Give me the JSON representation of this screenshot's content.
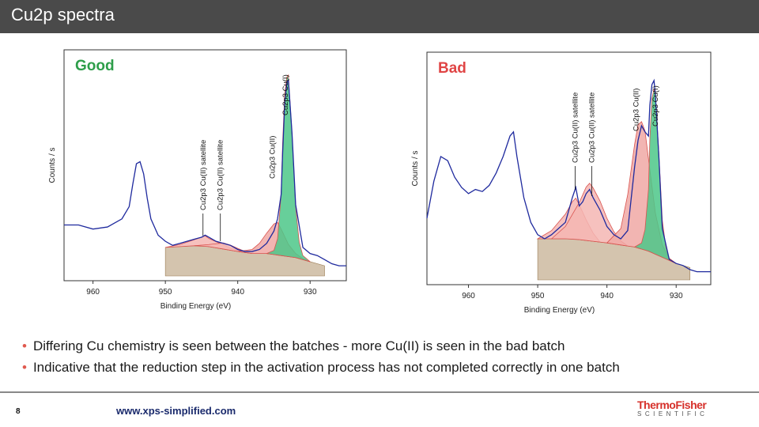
{
  "slide": {
    "title": "Cu2p spectra",
    "page_number": "8",
    "url": "www.xps-simplified.com",
    "logo_line1": "ThermoFisher",
    "logo_line2": "SCIENTIFIC",
    "bullets": [
      "Differing Cu chemistry is seen between the batches - more Cu(II) is seen in the bad batch",
      "Indicative that the reduction step in the activation process has not completed correctly in one batch"
    ],
    "bullet_color": "#e05a4f"
  },
  "chart_data": [
    {
      "type": "line",
      "title": "Good",
      "title_color": "#2e9e4a",
      "xlabel": "Binding Energy (eV)",
      "ylabel": "Counts / s",
      "x_reversed": true,
      "xlim": [
        964,
        925
      ],
      "ylim": [
        0,
        100
      ],
      "xticks": [
        960,
        950,
        940,
        930
      ],
      "grid": false,
      "series": [
        {
          "color": "#1f2a9e",
          "x": [
            964,
            962,
            960,
            958,
            957,
            956,
            955,
            954.5,
            954,
            953.5,
            953,
            952.5,
            952,
            951,
            950,
            949,
            948,
            947,
            946,
            945,
            944.5,
            944,
            943,
            942,
            941,
            940,
            939,
            938,
            937,
            936,
            935,
            934.5,
            934,
            933.8,
            933.5,
            933.2,
            933,
            932.5,
            932,
            931,
            930,
            929,
            928,
            927,
            926,
            925
          ],
          "y": [
            25,
            25,
            23,
            24,
            26,
            28,
            34,
            45,
            55,
            56,
            50,
            38,
            28,
            20,
            17,
            15,
            16,
            17,
            18,
            19,
            20,
            19,
            17,
            16,
            15,
            13,
            12,
            12,
            13,
            16,
            22,
            28,
            40,
            60,
            85,
            95,
            96,
            70,
            35,
            14,
            11,
            10,
            8,
            6,
            5,
            5
          ]
        }
      ],
      "components": [
        {
          "name": "Cu2p3 Cu(II) satellite",
          "color": "#f4b6b3",
          "x": [
            950,
            948,
            946,
            945,
            944.5,
            944,
            943,
            942,
            941,
            940,
            939
          ],
          "y": [
            0,
            1,
            3,
            4,
            5,
            4,
            3,
            2,
            1,
            0.5,
            0
          ]
        },
        {
          "name": "Cu2p3 Cu(II) satellite",
          "color": "#f4b6b3",
          "x": [
            946,
            944,
            943,
            942,
            941,
            940,
            939,
            938
          ],
          "y": [
            0,
            1,
            2,
            3,
            2.5,
            1.5,
            0.5,
            0
          ]
        },
        {
          "name": "Cu2p3 Cu(II)",
          "color": "#f0a8a4",
          "x": [
            940,
            938,
            937,
            936,
            935,
            934.5,
            934,
            933,
            932,
            931,
            930
          ],
          "y": [
            0,
            2,
            5,
            10,
            15,
            16,
            13,
            6,
            2,
            0.5,
            0
          ]
        },
        {
          "name": "Cu2p3 Cu(I)",
          "color": "#4cc788",
          "x": [
            936,
            935,
            934.5,
            934,
            933.8,
            933.5,
            933.2,
            933,
            932.5,
            932,
            931.5,
            931,
            930
          ],
          "y": [
            0,
            2,
            8,
            30,
            55,
            80,
            88,
            89,
            60,
            25,
            8,
            2,
            0
          ]
        }
      ],
      "background": {
        "color": "#c9b59a",
        "x": [
          950,
          945,
          940,
          938,
          936,
          934,
          932,
          930,
          928
        ],
        "y": [
          14,
          15,
          12,
          11,
          11,
          10,
          9,
          7,
          5
        ]
      },
      "annotations": [
        {
          "label": "Cu2p3 Cu(II) satellite",
          "x": 944.8
        },
        {
          "label": "Cu2p3 Cu(II) satellite",
          "x": 942.4
        },
        {
          "label": "Cu2p3 Cu(II)",
          "x": 935.2
        },
        {
          "label": "Cu2p3 Cu(I)",
          "x": 933.4
        }
      ]
    },
    {
      "type": "line",
      "title": "Bad",
      "title_color": "#e04545",
      "xlabel": "Binding Energy (eV)",
      "ylabel": "Counts / s",
      "x_reversed": true,
      "xlim": [
        966,
        925
      ],
      "ylim": [
        0,
        100
      ],
      "xticks": [
        960,
        950,
        940,
        930
      ],
      "grid": false,
      "series": [
        {
          "color": "#1f2a9e",
          "x": [
            966,
            965,
            964,
            963,
            962,
            961,
            960,
            959,
            958,
            957,
            956,
            955,
            954,
            953.5,
            953,
            952,
            951,
            950,
            949,
            948,
            947,
            946,
            945,
            944.5,
            944,
            943.5,
            943,
            942.5,
            942,
            941,
            940,
            939,
            938,
            937,
            936,
            935.5,
            935,
            934.5,
            934,
            933.8,
            933.5,
            933.2,
            933,
            932.5,
            932,
            931,
            930,
            929,
            928,
            927,
            926,
            925
          ],
          "y": [
            30,
            48,
            60,
            58,
            50,
            45,
            42,
            44,
            43,
            46,
            52,
            60,
            70,
            72,
            60,
            40,
            28,
            22,
            20,
            22,
            25,
            28,
            40,
            45,
            36,
            38,
            42,
            44,
            40,
            34,
            26,
            22,
            20,
            24,
            55,
            68,
            75,
            72,
            70,
            85,
            95,
            97,
            90,
            60,
            25,
            10,
            8,
            7,
            5,
            4,
            4,
            4
          ]
        }
      ],
      "components": [
        {
          "name": "Cu2p3 Cu(II) satellite",
          "color": "#f4b6b3",
          "x": [
            950,
            948,
            946,
            945,
            944.5,
            944,
            943,
            942,
            941
          ],
          "y": [
            0,
            4,
            12,
            18,
            20,
            17,
            10,
            4,
            0
          ]
        },
        {
          "name": "Cu2p3 Cu(II) satellite",
          "color": "#f4b6b3",
          "x": [
            948,
            946,
            944,
            943,
            942.5,
            942,
            941,
            940,
            939,
            938,
            937
          ],
          "y": [
            0,
            6,
            18,
            26,
            28,
            26,
            20,
            12,
            6,
            2,
            0
          ]
        },
        {
          "name": "Cu2p3 Cu(II)",
          "color": "#f0a8a4",
          "x": [
            940,
            938,
            937,
            936,
            935.5,
            935,
            934.5,
            934,
            933,
            932,
            931,
            930
          ],
          "y": [
            0,
            8,
            25,
            50,
            60,
            62,
            58,
            45,
            20,
            6,
            1,
            0
          ]
        },
        {
          "name": "Cu2p3 Cu(I)",
          "color": "#4cc788",
          "x": [
            936,
            935,
            934.5,
            934,
            933.8,
            933.5,
            933.2,
            933,
            932.5,
            932,
            931.5,
            931,
            930
          ],
          "y": [
            0,
            3,
            10,
            30,
            55,
            75,
            80,
            78,
            50,
            18,
            6,
            1,
            0
          ]
        }
      ],
      "background": {
        "color": "#c9b59a",
        "x": [
          950,
          945,
          940,
          938,
          936,
          934,
          932,
          930,
          928
        ],
        "y": [
          20,
          20,
          18,
          17,
          16,
          14,
          11,
          8,
          6
        ]
      },
      "annotations": [
        {
          "label": "Cu2p3 Cu(II) satellite",
          "x": 944.6
        },
        {
          "label": "Cu2p3 Cu(II) satellite",
          "x": 942.2
        },
        {
          "label": "Cu2p3 Cu(II)",
          "x": 935.8
        },
        {
          "label": "Cu2p3 Cu(I)",
          "x": 933.0
        }
      ]
    }
  ]
}
